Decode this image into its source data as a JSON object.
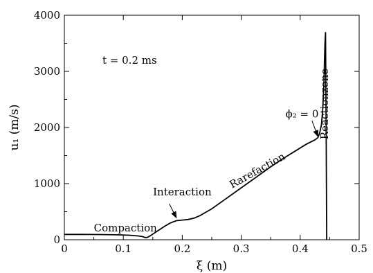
{
  "chart_data": {
    "type": "line",
    "xlabel": "ξ (m)",
    "ylabel": "u₁ (m/s)",
    "xlim": [
      0,
      0.5
    ],
    "ylim": [
      0,
      4000
    ],
    "x_ticks": [
      0,
      0.1,
      0.2,
      0.3,
      0.4,
      0.5
    ],
    "x_tick_labels": [
      "0",
      "0.1",
      "0.2",
      "0.3",
      "0.4",
      "0.5"
    ],
    "y_ticks": [
      0,
      1000,
      2000,
      3000,
      4000
    ],
    "y_tick_labels": [
      "0",
      "1000",
      "2000",
      "3000",
      "4000"
    ],
    "grid": false,
    "time_label": "t = 0.2 ms",
    "series": [
      {
        "x": [
          0,
          0.03,
          0.06,
          0.09,
          0.11,
          0.125,
          0.133,
          0.137,
          0.14,
          0.145,
          0.15,
          0.16,
          0.17,
          0.18,
          0.19,
          0.2,
          0.21,
          0.22,
          0.23,
          0.25,
          0.27,
          0.29,
          0.31,
          0.33,
          0.35,
          0.37,
          0.39,
          0.41,
          0.425,
          0.43,
          0.433,
          0.436,
          0.438,
          0.44,
          0.441,
          0.442,
          0.443,
          0.444,
          0.445
        ],
        "y": [
          95,
          95,
          93,
          88,
          80,
          68,
          55,
          40,
          40,
          65,
          100,
          170,
          240,
          300,
          340,
          350,
          360,
          385,
          430,
          550,
          700,
          850,
          1000,
          1150,
          1300,
          1440,
          1570,
          1700,
          1780,
          1820,
          1900,
          2050,
          2300,
          2700,
          3100,
          3500,
          3700,
          2000,
          0
        ]
      }
    ],
    "annotations": [
      {
        "text": "Compaction",
        "x": 0.05,
        "y": 150
      },
      {
        "text": "Interaction",
        "x": 0.2,
        "y": 790
      },
      {
        "text": "Rarefaction",
        "x": 0.33,
        "y": 1180
      },
      {
        "text": "ϕ₂ = 0",
        "x": 0.375,
        "y": 2180
      },
      {
        "text": "Reactionzone",
        "x": 0.447,
        "y": 2420
      }
    ],
    "arrows": [
      {
        "from": [
          0.178,
          640
        ],
        "to": [
          0.19,
          390
        ]
      },
      {
        "from": [
          0.42,
          2120
        ],
        "to": [
          0.43,
          1840
        ]
      }
    ]
  }
}
